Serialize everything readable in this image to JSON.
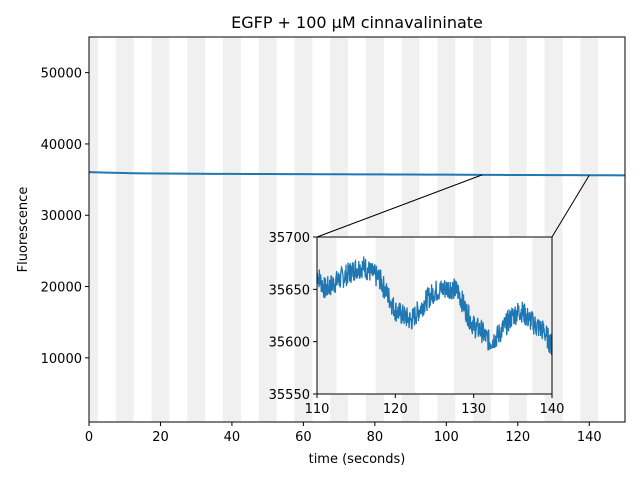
{
  "chart_data": {
    "type": "line",
    "title": "EGFP + 100 µM cinnavalininate",
    "xlabel": "time (seconds)",
    "ylabel": "Fluorescence",
    "xlim": [
      0,
      150
    ],
    "ylim": [
      1000,
      55000
    ],
    "xticks": [
      0,
      20,
      40,
      60,
      80,
      100,
      120,
      140
    ],
    "yticks": [
      10000,
      20000,
      30000,
      40000,
      50000
    ],
    "grid": false,
    "shaded_intervals": [
      [
        0,
        2.5
      ],
      [
        7.5,
        12.5
      ],
      [
        17.5,
        22.5
      ],
      [
        27.5,
        32.5
      ],
      [
        37.5,
        42.5
      ],
      [
        47.5,
        52.5
      ],
      [
        57.5,
        62.5
      ],
      [
        67.5,
        72.5
      ],
      [
        77.5,
        82.5
      ],
      [
        87.5,
        92.5
      ],
      [
        97.5,
        102.5
      ],
      [
        107.5,
        112.5
      ],
      [
        117.5,
        122.5
      ],
      [
        127.5,
        132.5
      ],
      [
        137.5,
        142.5
      ]
    ],
    "shade_color": "#f0f0f0",
    "line_color": "#1f77b4",
    "series": [
      {
        "x": [
          0,
          5,
          10,
          15,
          20,
          25,
          30,
          35,
          40,
          45,
          50,
          55,
          60,
          65,
          70,
          75,
          80,
          85,
          90,
          95,
          100,
          105,
          110,
          115,
          120,
          125,
          130,
          135,
          140,
          145,
          150
        ],
        "values": [
          36050,
          35980,
          35920,
          35880,
          35860,
          35840,
          35820,
          35810,
          35800,
          35790,
          35780,
          35770,
          35760,
          35755,
          35750,
          35740,
          35730,
          35720,
          35710,
          35700,
          35690,
          35680,
          35660,
          35655,
          35640,
          35645,
          35620,
          35625,
          35610,
          35600,
          35590
        ]
      }
    ],
    "inset": {
      "xlim": [
        110,
        140
      ],
      "ylim": [
        35550,
        35700
      ],
      "xticks": [
        110,
        120,
        130,
        140
      ],
      "yticks": [
        35550,
        35600,
        35650,
        35700
      ],
      "series": [
        {
          "x": [
            110,
            111,
            112,
            113,
            114,
            115,
            116,
            117,
            118,
            119,
            120,
            121,
            122,
            123,
            124,
            125,
            126,
            127,
            128,
            129,
            130,
            131,
            132,
            133,
            134,
            135,
            136,
            137,
            138,
            139,
            140
          ],
          "values": [
            35665,
            35650,
            35655,
            35660,
            35665,
            35670,
            35672,
            35665,
            35660,
            35645,
            35630,
            35625,
            35620,
            35630,
            35640,
            35648,
            35650,
            35652,
            35648,
            35630,
            35615,
            35610,
            35600,
            35605,
            35615,
            35625,
            35630,
            35622,
            35615,
            35610,
            35595
          ]
        }
      ]
    }
  }
}
